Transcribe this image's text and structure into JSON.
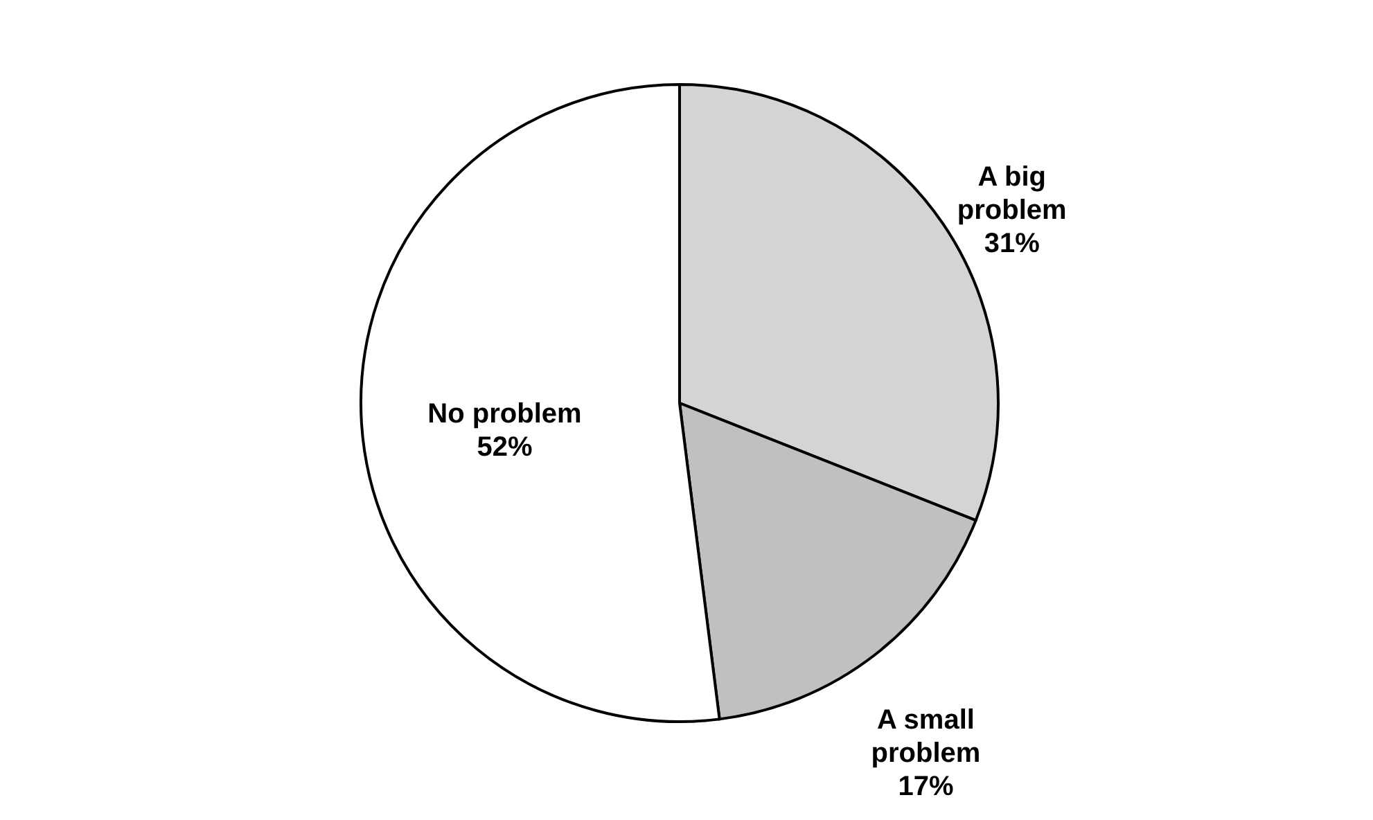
{
  "chart_data": {
    "type": "pie",
    "categories": [
      "A big problem",
      "A small problem",
      "No problem"
    ],
    "values": [
      31,
      17,
      52
    ],
    "colors": [
      "#d4d4d4",
      "#c0c0c0",
      "#ffffff"
    ],
    "value_labels": [
      "31%",
      "17%",
      "52%"
    ],
    "legend": false
  }
}
